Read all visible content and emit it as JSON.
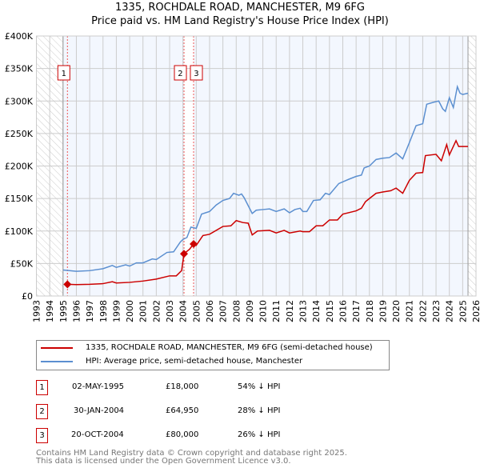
{
  "chart_data": {
    "type": "line",
    "title": "1335, ROCHDALE ROAD, MANCHESTER, M9 6FG",
    "subtitle": "Price paid vs. HM Land Registry's House Price Index (HPI)",
    "xlim": [
      1993,
      2026
    ],
    "ylim": [
      0,
      400000
    ],
    "x_ticks": [
      "1993",
      "1994",
      "1995",
      "1996",
      "1997",
      "1998",
      "1999",
      "2000",
      "2001",
      "2002",
      "2003",
      "2004",
      "2005",
      "2006",
      "2007",
      "2008",
      "2009",
      "2010",
      "2011",
      "2012",
      "2013",
      "2014",
      "2015",
      "2016",
      "2017",
      "2018",
      "2019",
      "2020",
      "2021",
      "2022",
      "2023",
      "2024",
      "2025",
      "2026"
    ],
    "y_ticks": [
      {
        "v": 0,
        "label": "£0"
      },
      {
        "v": 50000,
        "label": "£50K"
      },
      {
        "v": 100000,
        "label": "£100K"
      },
      {
        "v": 150000,
        "label": "£150K"
      },
      {
        "v": 200000,
        "label": "£200K"
      },
      {
        "v": 250000,
        "label": "£250K"
      },
      {
        "v": 300000,
        "label": "£300K"
      },
      {
        "v": 350000,
        "label": "£350K"
      },
      {
        "v": 400000,
        "label": "£400K"
      }
    ],
    "grid": true,
    "data_range": [
      1995,
      2025.4
    ],
    "series": [
      {
        "name": "1335, ROCHDALE ROAD, MANCHESTER, M9 6FG (semi-detached house)",
        "color": "#cc0000",
        "x": [
          1995.33,
          1996,
          1997,
          1998,
          1998.7,
          1999,
          2000,
          2001,
          2002,
          2003,
          2003.5,
          2003.9,
          2004.08,
          2004.5,
          2004.8,
          2005,
          2005.5,
          2006,
          2007,
          2007.6,
          2008,
          2008.5,
          2008.9,
          2009.2,
          2009.6,
          2010.5,
          2011,
          2011.6,
          2012,
          2012.8,
          2013,
          2013.5,
          2014,
          2014.5,
          2015,
          2015.6,
          2016,
          2017,
          2017.4,
          2017.7,
          2018,
          2018.5,
          2019,
          2019.6,
          2020,
          2020.5,
          2021,
          2021.5,
          2022,
          2022.2,
          2023,
          2023.4,
          2023.8,
          2024,
          2024.5,
          2024.7,
          2025.4
        ],
        "y": [
          18000,
          17500,
          18000,
          19000,
          22000,
          20000,
          21000,
          23000,
          26000,
          31000,
          31000,
          39000,
          64950,
          72000,
          80000,
          78000,
          93000,
          95000,
          107000,
          108000,
          116000,
          113000,
          112000,
          94000,
          100000,
          101000,
          97000,
          101000,
          97000,
          100000,
          99000,
          99000,
          108000,
          108000,
          117000,
          117000,
          126000,
          131000,
          135000,
          145000,
          150000,
          158000,
          160000,
          162000,
          166000,
          158000,
          178000,
          189000,
          190000,
          216000,
          218000,
          208000,
          233000,
          217000,
          239000,
          230000,
          230000
        ]
      },
      {
        "name": "HPI: Average price, semi-detached house, Manchester",
        "color": "#5b8fd0",
        "x": [
          1995,
          1996,
          1997,
          1998,
          1998.7,
          1999,
          1999.7,
          2000,
          2000.5,
          2001,
          2001.7,
          2002,
          2002.8,
          2003.3,
          2003.8,
          2004,
          2004.3,
          2004.6,
          2005,
          2005.4,
          2006,
          2006.5,
          2007,
          2007.5,
          2007.8,
          2008.2,
          2008.4,
          2008.6,
          2009.2,
          2009.5,
          2010,
          2010.5,
          2011,
          2011.6,
          2012,
          2012.4,
          2012.8,
          2013,
          2013.3,
          2013.8,
          2014.3,
          2014.7,
          2015,
          2015.7,
          2016.5,
          2017,
          2017.4,
          2017.6,
          2018,
          2018.5,
          2019,
          2019.5,
          2020,
          2020.5,
          2021,
          2021.5,
          2022,
          2022.3,
          2022.8,
          2023.2,
          2023.5,
          2023.7,
          2024,
          2024.3,
          2024.6,
          2024.8,
          2025,
          2025.4
        ],
        "y": [
          40000,
          38000,
          39000,
          42000,
          47000,
          44000,
          48000,
          46000,
          51000,
          51000,
          57000,
          56000,
          67000,
          68000,
          83000,
          87000,
          90000,
          106000,
          104000,
          126000,
          130000,
          140000,
          147000,
          150000,
          158000,
          155000,
          157000,
          151000,
          127000,
          132000,
          133000,
          134000,
          130000,
          134000,
          128000,
          133000,
          135000,
          130000,
          130000,
          147000,
          148000,
          158000,
          156000,
          173000,
          180000,
          184000,
          186000,
          197000,
          200000,
          210000,
          212000,
          213000,
          220000,
          211000,
          236000,
          262000,
          265000,
          295000,
          298000,
          300000,
          288000,
          284000,
          305000,
          290000,
          322000,
          312000,
          310000,
          312000
        ]
      }
    ],
    "sales": [
      {
        "label": "1",
        "xdate": 1995.33,
        "price": 18000
      },
      {
        "label": "2",
        "xdate": 2004.08,
        "price": 64950
      },
      {
        "label": "3",
        "xdate": 2004.8,
        "price": 80000
      }
    ],
    "legend_placement": "below"
  },
  "legend": {
    "property": "1335, ROCHDALE ROAD, MANCHESTER, M9 6FG (semi-detached house)",
    "hpi": "HPI: Average price, semi-detached house, Manchester"
  },
  "transactions": [
    {
      "num": "1",
      "date": "02-MAY-1995",
      "price": "£18,000",
      "hpi": "54% ↓ HPI"
    },
    {
      "num": "2",
      "date": "30-JAN-2004",
      "price": "£64,950",
      "hpi": "28% ↓ HPI"
    },
    {
      "num": "3",
      "date": "20-OCT-2004",
      "price": "£80,000",
      "hpi": "26% ↓ HPI"
    }
  ],
  "footer": {
    "line1": "Contains HM Land Registry data © Crown copyright and database right 2025.",
    "line2": "This data is licensed under the Open Government Licence v3.0."
  }
}
